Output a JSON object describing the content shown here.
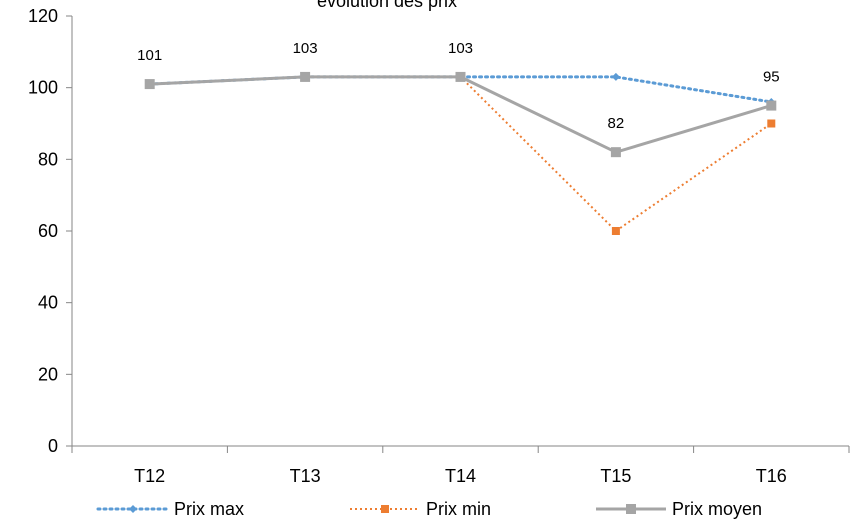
{
  "chart_data": {
    "type": "line",
    "title": "évolution des prix",
    "xlabel": "",
    "ylabel": "",
    "categories": [
      "T12",
      "T13",
      "T14",
      "T15",
      "T16"
    ],
    "ylim": [
      0,
      120
    ],
    "yticks": [
      0,
      20,
      40,
      60,
      80,
      100,
      120
    ],
    "grid": false,
    "legend_position": "bottom",
    "series": [
      {
        "name": "Prix max",
        "values": [
          101,
          103,
          103,
          103,
          96
        ],
        "color": "#5b9bd5",
        "line_style": "dotted",
        "marker": "diamond"
      },
      {
        "name": "Prix min",
        "values": [
          101,
          103,
          103,
          60,
          90
        ],
        "color": "#ed7d31",
        "line_style": "dotted",
        "marker": "square"
      },
      {
        "name": "Prix moyen",
        "values": [
          101,
          103,
          103,
          82,
          95
        ],
        "color": "#a5a5a5",
        "line_style": "solid",
        "marker": "square"
      }
    ],
    "data_labels": {
      "series": "Prix moyen",
      "labels": [
        "101",
        "103",
        "103",
        "82",
        "95"
      ]
    }
  }
}
